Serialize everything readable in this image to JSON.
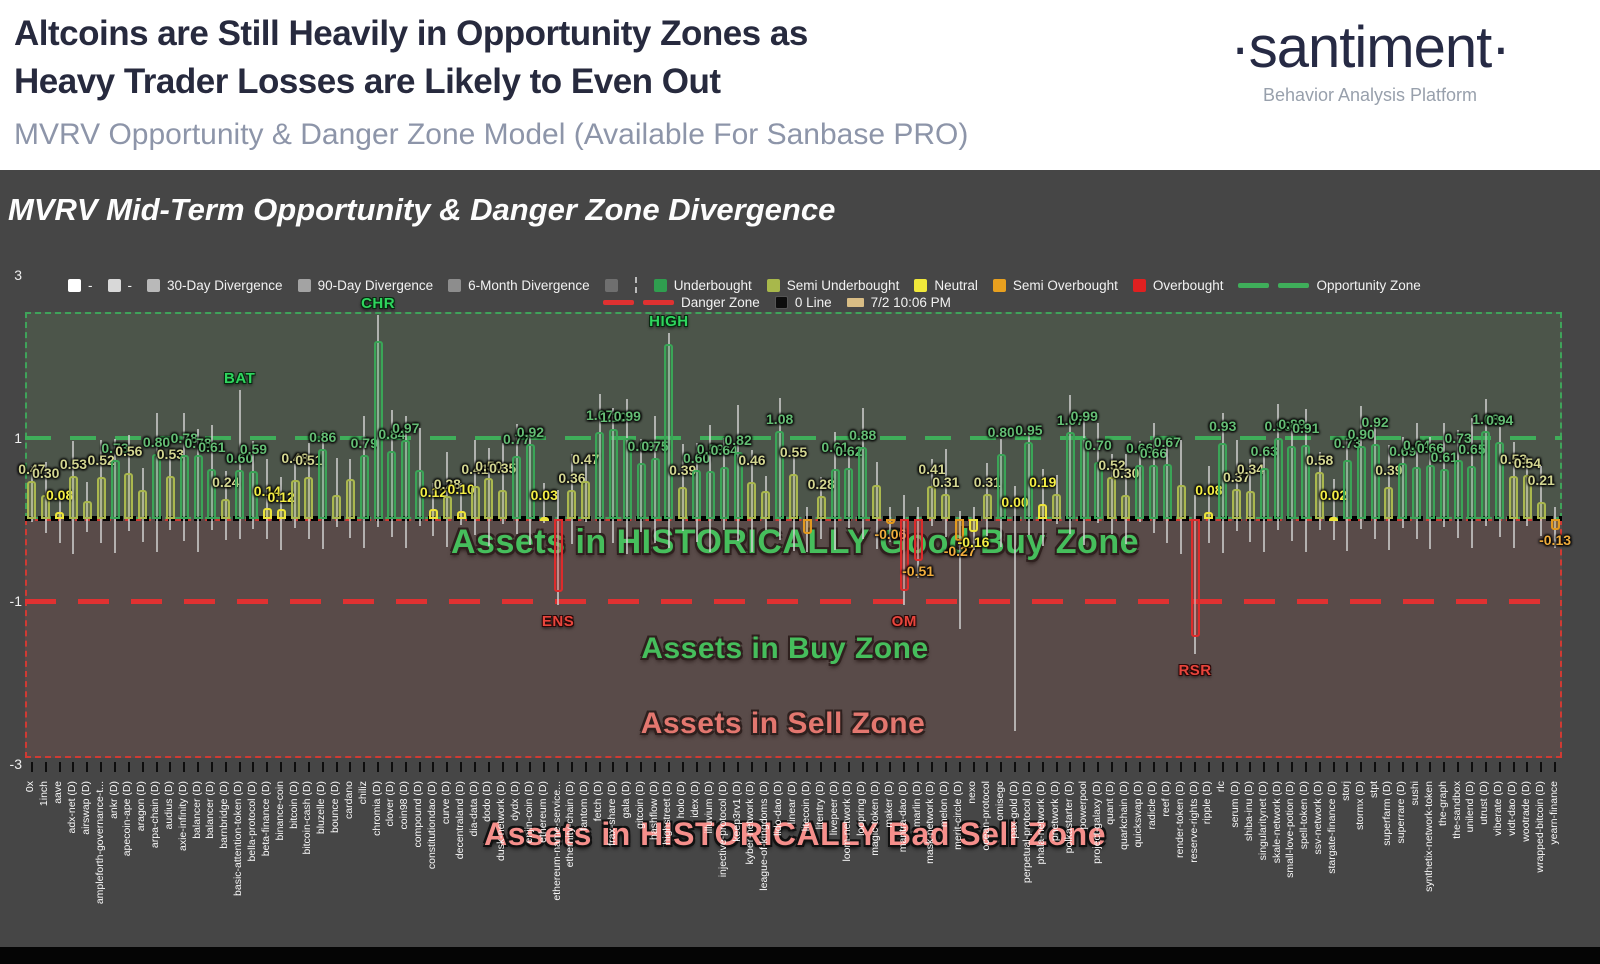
{
  "header": {
    "title_line1": "Altcoins are Still Heavily in Opportunity Zones as",
    "title_line2": "Heavy Trader Losses are Likely to Even Out",
    "subtitle": "MVRV Opportunity & Danger Zone Model (Available For Sanbase PRO)",
    "logo_text": "·santiment·",
    "logo_tagline": "Behavior Analysis Platform"
  },
  "chart": {
    "title": "MVRV Mid-Term Opportunity & Danger Zone Divergence"
  },
  "legend": {
    "row1": [
      {
        "swatch": "#ffffff",
        "label": "-"
      },
      {
        "swatch": "#d8d8d8",
        "label": "-"
      },
      {
        "swatch": "#b9b9b9",
        "label": "30-Day Divergence"
      },
      {
        "swatch": "#a3a3a3",
        "label": "90-Day Divergence"
      },
      {
        "swatch": "#8d8d8d",
        "label": "6-Month Divergence"
      },
      {
        "swatch": "#6f6f6f",
        "label": "",
        "divider_after": true
      },
      {
        "swatch": "#2f9e4f",
        "label": "Underbought"
      },
      {
        "swatch": "#a8b84b",
        "label": "Semi Underbought"
      },
      {
        "swatch": "#f0e83a",
        "label": "Neutral"
      },
      {
        "swatch": "#e8a01f",
        "label": "Semi Overbought"
      },
      {
        "swatch": "#e02020",
        "label": "Overbought"
      },
      {
        "dashes": "#3fae5a",
        "label": "Opportunity Zone"
      }
    ],
    "row2": [
      {
        "dashes": "#e03131",
        "label": "Danger Zone"
      },
      {
        "swatch": "#0d0d0d",
        "label": "0 Line"
      },
      {
        "chip": "#d9bd85",
        "label": "7/2 10:06 PM"
      }
    ]
  },
  "zones": {
    "good_buy": "Assets in HISTORICALLY Good Buy Zone",
    "buy": "Assets in Buy Zone",
    "sell": "Assets in Sell Zone",
    "bad_sell": "Assets in HISTORICALLY Bad Sell Zone"
  },
  "axis": {
    "y_ticks": [
      {
        "value": 3,
        "label": "3"
      },
      {
        "value": 1,
        "label": "1"
      },
      {
        "value": -1,
        "label": "-1"
      },
      {
        "value": -3,
        "label": "-3"
      }
    ]
  },
  "colors": {
    "underbought": "#3aa557",
    "semi_underbought": "#aab84e",
    "neutral": "#ece43a",
    "semi_overbought": "#e2991f",
    "overbought": "#dd2b2b",
    "opportunity_line": "#3fae5a",
    "danger_line": "#e03131",
    "zero_line": "#000000",
    "label_g": "#64bd74",
    "label_o": "#d3d691",
    "label_y": "#f4ee45",
    "label_a": "#f0ad3d",
    "label_r": "#f0ad3d"
  },
  "chart_data": {
    "type": "bar",
    "title": "MVRV Mid-Term Opportunity & Danger Zone Divergence",
    "ylim": [
      -3,
      3
    ],
    "thresholds": {
      "opportunity_zone": 1,
      "danger_zone": -1,
      "zero_line": 0
    },
    "category_colors": {
      "g": "underbought",
      "o": "semi_underbought",
      "y": "neutral",
      "a": "semi_overbought",
      "r": "overbought"
    },
    "coins": [
      {
        "n": "0x",
        "v": 0.47,
        "c": "o",
        "l": "0.47"
      },
      {
        "n": "1inch",
        "v": 0.3,
        "c": "o",
        "l": "0.30"
      },
      {
        "n": "aave",
        "v": 0.08,
        "c": "y",
        "l": "0.08"
      },
      {
        "n": "adx-net (D)",
        "v": 0.53,
        "c": "o",
        "l": "0.53"
      },
      {
        "n": "airswap (D)",
        "v": 0.22,
        "c": "o"
      },
      {
        "n": "ampleforth-governance-t...",
        "v": 0.52,
        "c": "o",
        "l": "0.52"
      },
      {
        "n": "ankr (D)",
        "v": 0.73,
        "c": "g",
        "l": "0.73"
      },
      {
        "n": "apecoin-ape (D)",
        "v": 0.56,
        "c": "o",
        "l": "0.56"
      },
      {
        "n": "aragon (D)",
        "v": 0.35,
        "c": "o"
      },
      {
        "n": "arpa-chain (D)",
        "v": 0.8,
        "c": "g",
        "l": "0.80"
      },
      {
        "n": "audius (D)",
        "v": 0.53,
        "c": "o",
        "l": "0.53"
      },
      {
        "n": "axie-infinity (D)",
        "v": 0.78,
        "c": "g",
        "l": "0.78"
      },
      {
        "n": "balancer (D)",
        "v": 0.78,
        "c": "g",
        "l": "0.78"
      },
      {
        "n": "balancer (D)",
        "v": 0.61,
        "c": "g",
        "l": "0.61"
      },
      {
        "n": "barnbridge (D)",
        "v": 0.24,
        "c": "o",
        "l": "0.24"
      },
      {
        "n": "basic-attention-token (D)",
        "v": 0.6,
        "c": "g",
        "l": "0.60",
        "w": [
          -0.25,
          1.58
        ]
      },
      {
        "n": "bella-protocol (D)",
        "v": 0.59,
        "c": "g",
        "l": "0.59"
      },
      {
        "n": "beta-finance (D)",
        "v": 0.14,
        "c": "y",
        "l": "0.14"
      },
      {
        "n": "binance-coin",
        "v": 0.12,
        "c": "y",
        "l": "0.12"
      },
      {
        "n": "bitcoin (D)",
        "v": 0.48,
        "c": "o",
        "l": "0.48"
      },
      {
        "n": "bitcoin-cash (D)",
        "v": 0.51,
        "c": "o",
        "l": "0.51"
      },
      {
        "n": "bluzelle (D)",
        "v": 0.86,
        "c": "g",
        "l": "0.86"
      },
      {
        "n": "bounce (D)",
        "v": 0.3,
        "c": "o"
      },
      {
        "n": "cardano",
        "v": 0.49,
        "c": "o"
      },
      {
        "n": "chiliz",
        "v": 0.79,
        "c": "g",
        "l": "0.79"
      },
      {
        "n": "chromia (D)",
        "v": 2.18,
        "c": "g",
        "w": [
          -0.1,
          2.5
        ]
      },
      {
        "n": "clover (D)",
        "v": 0.84,
        "c": "g",
        "l": "0.84"
      },
      {
        "n": "coin98 (D)",
        "v": 0.97,
        "c": "g",
        "l": "0.97"
      },
      {
        "n": "compound (D)",
        "v": 0.6,
        "c": "g"
      },
      {
        "n": "constitutiondao (D)",
        "v": 0.12,
        "c": "y",
        "l": "0.12"
      },
      {
        "n": "curve (D)",
        "v": 0.28,
        "c": "o",
        "l": "0.28"
      },
      {
        "n": "decentraland (D)",
        "v": 0.1,
        "c": "y",
        "l": "0.10"
      },
      {
        "n": "dia-data (D)",
        "v": 0.41,
        "c": "o",
        "l": "0.41"
      },
      {
        "n": "dodo (D)",
        "v": 0.5,
        "c": "o",
        "l": "0.50"
      },
      {
        "n": "dusk-network (D)",
        "v": 0.35,
        "c": "o",
        "l": "0.35"
      },
      {
        "n": "dydx (D)",
        "v": 0.77,
        "c": "g",
        "l": "0.77"
      },
      {
        "n": "enjin-coin (D)",
        "v": 0.92,
        "c": "g",
        "l": "0.92"
      },
      {
        "n": "ethereum (D)",
        "v": 0.03,
        "c": "y",
        "l": "0.03"
      },
      {
        "n": "ethereum-name-service...",
        "v": -0.9,
        "c": "r",
        "w": [
          -1.05,
          0.35
        ]
      },
      {
        "n": "ethernity-chain (D)",
        "v": 0.36,
        "c": "o",
        "l": "0.36"
      },
      {
        "n": "fantom (D)",
        "v": 0.47,
        "c": "o",
        "l": "0.47"
      },
      {
        "n": "fetch (D)",
        "v": 1.07,
        "c": "g",
        "l": "1.07"
      },
      {
        "n": "frax-share (D)",
        "v": 1.1,
        "c": "g",
        "l": "1.10"
      },
      {
        "n": "gala (D)",
        "v": 0.99,
        "c": "g",
        "l": "0.99"
      },
      {
        "n": "gitcoin (D)",
        "v": 0.69,
        "c": "g",
        "l": "0.69"
      },
      {
        "n": "hashflow (D)",
        "v": 0.75,
        "c": "g",
        "l": "0.75"
      },
      {
        "n": "highstreet (D)",
        "v": 2.15,
        "c": "g",
        "w": [
          -0.35,
          2.28
        ]
      },
      {
        "n": "holo (D)",
        "v": 0.39,
        "c": "o",
        "l": "0.39"
      },
      {
        "n": "idex (D)",
        "v": 0.6,
        "c": "g",
        "l": "0.60"
      },
      {
        "n": "illuvium (D)",
        "v": 0.59,
        "c": "g",
        "l": "0.59"
      },
      {
        "n": "injective-protocol (D)",
        "v": 0.64,
        "c": "g",
        "l": "0.64"
      },
      {
        "n": "keep3rv1 (D)",
        "v": 0.82,
        "c": "g",
        "l": "0.82"
      },
      {
        "n": "kyber-network (D)",
        "v": 0.46,
        "c": "o",
        "l": "0.46"
      },
      {
        "n": "league-of-kingdoms (D)",
        "v": 0.34,
        "c": "o"
      },
      {
        "n": "lido-dao (D)",
        "v": 1.08,
        "c": "g",
        "l": "1.08"
      },
      {
        "n": "linear (D)",
        "v": 0.55,
        "c": "o",
        "l": "0.55"
      },
      {
        "n": "litecoin (D)",
        "v": -0.18,
        "c": "a"
      },
      {
        "n": "litentry (D)",
        "v": 0.28,
        "c": "o",
        "l": "0.28"
      },
      {
        "n": "livepeer (D)",
        "v": 0.61,
        "c": "g",
        "l": "0.61"
      },
      {
        "n": "loom-network (D)",
        "v": 0.62,
        "c": "g",
        "l": "0.62"
      },
      {
        "n": "loopring (D)",
        "v": 0.88,
        "c": "g",
        "l": "0.88"
      },
      {
        "n": "magic-token (D)",
        "v": 0.42,
        "c": "o"
      },
      {
        "n": "maker (D)",
        "v": -0.06,
        "c": "a",
        "l": "-0.06"
      },
      {
        "n": "mantra-dao (D)",
        "v": -0.88,
        "c": "r",
        "w": [
          -1.05,
          0.3
        ]
      },
      {
        "n": "marlin (D)",
        "v": -0.51,
        "c": "r",
        "l": "-0.51"
      },
      {
        "n": "mask-network (D)",
        "v": 0.41,
        "c": "o",
        "l": "0.41"
      },
      {
        "n": "melon (D)",
        "v": 0.31,
        "c": "o",
        "l": "0.31"
      },
      {
        "n": "merit-circle (D)",
        "v": -0.27,
        "c": "a",
        "l": "-0.27",
        "w": [
          -1.35,
          0.1
        ]
      },
      {
        "n": "nexo",
        "v": -0.16,
        "c": "y",
        "l": "-0.16"
      },
      {
        "n": "ocean-protocol",
        "v": 0.31,
        "c": "o",
        "l": "0.31"
      },
      {
        "n": "omisego",
        "v": 0.8,
        "c": "g",
        "l": "0.80"
      },
      {
        "n": "pax-gold (D)",
        "v": 0.0,
        "c": "y",
        "l": "0.00",
        "w": [
          -2.6,
          0.4
        ]
      },
      {
        "n": "perpetual-protocol (D)",
        "v": 0.95,
        "c": "g",
        "l": "0.95"
      },
      {
        "n": "phala-network (D)",
        "v": 0.19,
        "c": "y",
        "l": "0.19"
      },
      {
        "n": "pnetwork (D)",
        "v": 0.31,
        "c": "o"
      },
      {
        "n": "polkastarter (D)",
        "v": 1.07,
        "c": "g",
        "l": "1.07"
      },
      {
        "n": "powerpool",
        "v": 0.99,
        "c": "g",
        "l": "0.99"
      },
      {
        "n": "project-galaxy (D)",
        "v": 0.7,
        "c": "g",
        "l": "0.70"
      },
      {
        "n": "quant (D)",
        "v": 0.52,
        "c": "o",
        "l": "0.52"
      },
      {
        "n": "quarkchain (D)",
        "v": 0.3,
        "c": "o",
        "l": "0.30"
      },
      {
        "n": "quickswap (D)",
        "v": 0.66,
        "c": "g",
        "l": "0.66"
      },
      {
        "n": "radicle (D)",
        "v": 0.66,
        "c": "g",
        "l": "0.66"
      },
      {
        "n": "reef (D)",
        "v": 0.67,
        "c": "g",
        "l": "0.67"
      },
      {
        "n": "render-token (D)",
        "v": 0.42,
        "c": "o"
      },
      {
        "n": "reserve-rights (D)",
        "v": -1.45,
        "c": "r",
        "w": [
          -1.66,
          0.3
        ]
      },
      {
        "n": "ripple (D)",
        "v": 0.08,
        "c": "y",
        "l": "0.08"
      },
      {
        "n": "rlc",
        "v": 0.93,
        "c": "g",
        "l": "0.93"
      },
      {
        "n": "serum (D)",
        "v": 0.37,
        "c": "o",
        "l": "0.37"
      },
      {
        "n": "shiba-inu (D)",
        "v": 0.34,
        "c": "o",
        "l": "0.34"
      },
      {
        "n": "singularitynet (D)",
        "v": 0.63,
        "c": "g",
        "l": "0.63"
      },
      {
        "n": "skale-network (D)",
        "v": 0.99,
        "c": "g",
        "l": "0.99"
      },
      {
        "n": "small-love-potion (D)",
        "v": 0.89,
        "c": "g",
        "l": "0.89"
      },
      {
        "n": "spell-token (D)",
        "v": 0.91,
        "c": "g",
        "l": "0.91"
      },
      {
        "n": "ssv-network (D)",
        "v": 0.58,
        "c": "o",
        "l": "0.58"
      },
      {
        "n": "stargate-finance (D)",
        "v": 0.02,
        "c": "y",
        "l": "0.02"
      },
      {
        "n": "storj",
        "v": 0.73,
        "c": "g",
        "l": "0.73"
      },
      {
        "n": "stormx (D)",
        "v": 0.9,
        "c": "g",
        "l": "0.90"
      },
      {
        "n": "stpt",
        "v": 0.92,
        "c": "g",
        "l": "0.92"
      },
      {
        "n": "superfarm (D)",
        "v": 0.39,
        "c": "o",
        "l": "0.39"
      },
      {
        "n": "superrare (D)",
        "v": 0.69,
        "c": "g",
        "l": "0.69"
      },
      {
        "n": "sushi",
        "v": 0.64,
        "c": "g",
        "l": "0.64"
      },
      {
        "n": "synthetix-network-token",
        "v": 0.66,
        "c": "g",
        "l": "0.66"
      },
      {
        "n": "the-graph",
        "v": 0.61,
        "c": "g",
        "l": "0.61"
      },
      {
        "n": "the-sandbox",
        "v": 0.73,
        "c": "g",
        "l": "0.73"
      },
      {
        "n": "unilend (D)",
        "v": 0.65,
        "c": "g",
        "l": "0.65"
      },
      {
        "n": "utrust (D)",
        "v": 1.08,
        "c": "g",
        "l": "1.08"
      },
      {
        "n": "viberate (D)",
        "v": 0.94,
        "c": "g",
        "l": "0.94"
      },
      {
        "n": "vidt-dao (D)",
        "v": 0.53,
        "c": "o",
        "l": "0.53"
      },
      {
        "n": "wootrade (D)",
        "v": 0.54,
        "c": "o",
        "l": "0.54"
      },
      {
        "n": "wrapped-bitcoin (D)",
        "v": 0.21,
        "c": "o",
        "l": "0.21"
      },
      {
        "n": "yearn-finance",
        "v": -0.13,
        "c": "a",
        "l": "-0.13"
      }
    ],
    "callouts": [
      {
        "text": "BAT",
        "index": 15,
        "color": "#2fd65e",
        "placement": "top"
      },
      {
        "text": "CHR",
        "index": 25,
        "color": "#2fd65e",
        "placement": "top"
      },
      {
        "text": "HIGH",
        "index": 46,
        "color": "#2fd65e",
        "placement": "top"
      },
      {
        "text": "ENS",
        "index": 38,
        "color": "#e8453c",
        "placement": "bottom"
      },
      {
        "text": "OM",
        "index": 63,
        "color": "#e8453c",
        "placement": "bottom"
      },
      {
        "text": "RSR",
        "index": 84,
        "color": "#e8453c",
        "placement": "bottom"
      }
    ]
  }
}
